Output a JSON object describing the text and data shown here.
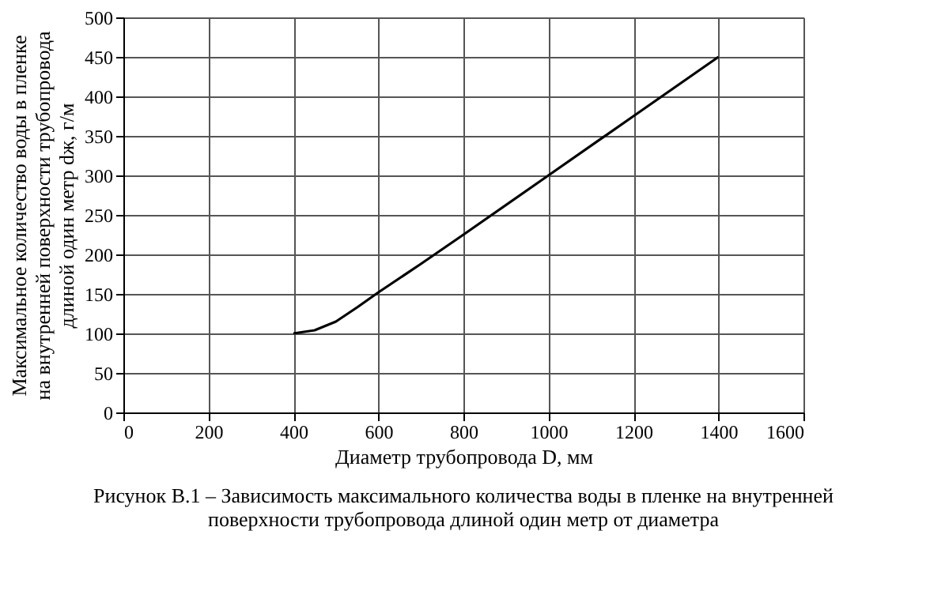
{
  "chart_data": {
    "type": "line",
    "xlabel": "Диаметр трубопровода D, мм",
    "ylabel": "Максимальное количество воды в пленке на внутренней поверхности трубопровода длиной один метр dж, г/м",
    "annotations": [
      "Рисунок В.1 – Зависимость максимального количества воды в пленке на внутренней поверхности трубопровода длиной один метр от диаметра"
    ],
    "x": [
      400,
      450,
      500,
      550,
      600,
      700,
      800,
      1000,
      1200,
      1400
    ],
    "series": [
      {
        "color": "#000000",
        "values": [
          100,
          104,
          115,
          133,
          152,
          188,
          225,
          300,
          375,
          450
        ]
      }
    ],
    "xlim": [
      0,
      1600
    ],
    "xticks": [
      0,
      200,
      400,
      600,
      800,
      1000,
      1200,
      1400,
      1600
    ],
    "ylim": [
      0,
      500
    ],
    "yticks": [
      0,
      50,
      100,
      150,
      200,
      250,
      300,
      350,
      400,
      450,
      500
    ],
    "grid": true,
    "legend": false,
    "marker": "none",
    "line_style": "solid"
  }
}
